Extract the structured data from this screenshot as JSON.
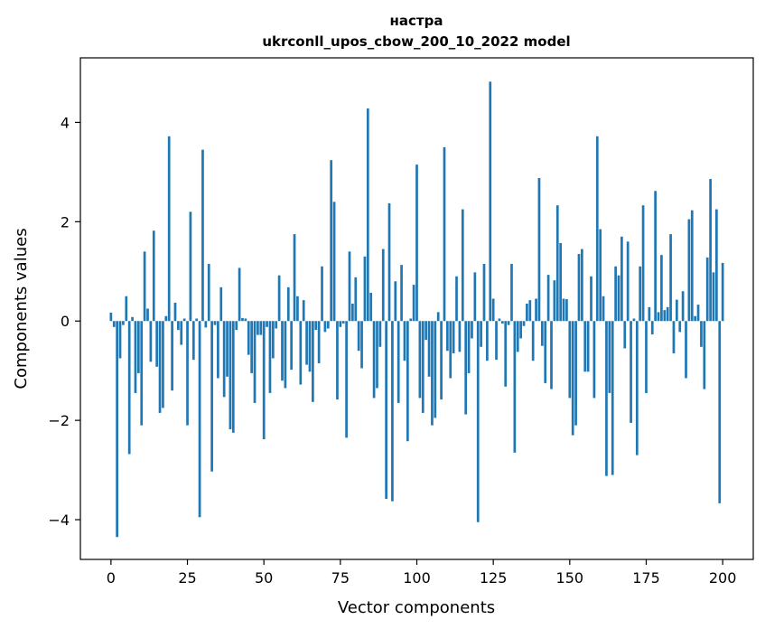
{
  "chart_data": {
    "type": "bar",
    "title": "настра",
    "subtitle": "ukrconll_upos_cbow_200_10_2022 model",
    "xlabel": "Vector components",
    "ylabel": "Components values",
    "xlim": [
      -10,
      210
    ],
    "ylim": [
      -4.8,
      5.3
    ],
    "xticks": [
      0,
      25,
      50,
      75,
      100,
      125,
      150,
      175,
      200
    ],
    "yticks": [
      -4,
      -2,
      0,
      2,
      4
    ],
    "xtick_labels": [
      "0",
      "25",
      "50",
      "75",
      "100",
      "125",
      "150",
      "175",
      "200"
    ],
    "ytick_labels": [
      "−4",
      "−2",
      "0",
      "2",
      "4"
    ],
    "bar_color": "#1f77b4",
    "grid": false,
    "values": [
      0.17,
      -0.12,
      -4.35,
      -0.75,
      -0.08,
      0.5,
      -2.68,
      0.08,
      -1.45,
      -1.05,
      -2.1,
      1.4,
      0.25,
      -0.82,
      1.82,
      -0.92,
      -1.85,
      -1.75,
      0.1,
      3.72,
      -1.4,
      0.37,
      -0.18,
      -0.48,
      0.05,
      -2.1,
      2.2,
      -0.78,
      0.05,
      -3.95,
      3.45,
      -0.13,
      1.15,
      -3.03,
      -0.08,
      -1.15,
      0.68,
      -1.53,
      -1.12,
      -2.18,
      -2.25,
      -0.18,
      1.07,
      0.06,
      0.05,
      -0.68,
      -1.05,
      -1.65,
      -0.28,
      -0.28,
      -2.38,
      -0.12,
      -1.45,
      -0.75,
      -0.15,
      0.92,
      -1.2,
      -1.35,
      0.68,
      -0.98,
      1.75,
      0.5,
      -1.28,
      0.42,
      -0.88,
      -1.02,
      -1.63,
      -0.18,
      -0.85,
      1.1,
      -0.22,
      -0.15,
      3.24,
      2.4,
      -1.58,
      -0.12,
      -0.05,
      -2.35,
      1.4,
      0.35,
      0.88,
      -0.6,
      -0.95,
      1.3,
      4.28,
      0.57,
      -1.55,
      -1.35,
      -0.52,
      1.45,
      -3.58,
      2.37,
      -3.63,
      0.8,
      -1.65,
      1.13,
      -0.8,
      -2.42,
      0.05,
      0.73,
      3.15,
      -1.55,
      -1.85,
      -0.38,
      -1.12,
      -2.1,
      -1.95,
      0.18,
      -1.58,
      3.5,
      -0.6,
      -1.15,
      -0.65,
      0.9,
      -0.62,
      2.25,
      -1.88,
      -1.05,
      -0.35,
      0.98,
      -4.05,
      -0.52,
      1.15,
      -0.8,
      4.82,
      0.45,
      -0.78,
      0.05,
      -0.05,
      -1.32,
      -0.08,
      1.15,
      -2.65,
      -0.62,
      -0.35,
      -0.1,
      0.35,
      0.42,
      -0.8,
      0.45,
      2.88,
      -0.5,
      -1.25,
      0.93,
      -1.37,
      0.82,
      2.33,
      1.57,
      0.45,
      0.44,
      -1.55,
      -2.3,
      -2.1,
      1.35,
      1.45,
      -1.02,
      -1.02,
      0.9,
      -1.55,
      3.72,
      1.85,
      0.5,
      -3.12,
      -1.45,
      -3.1,
      1.1,
      0.92,
      1.7,
      -0.55,
      1.6,
      -2.05,
      0.05,
      -2.7,
      1.1,
      2.33,
      -1.45,
      0.28,
      -0.27,
      2.62,
      0.18,
      1.33,
      0.22,
      0.28,
      1.75,
      -0.65,
      0.43,
      -0.22,
      0.6,
      -1.15,
      2.05,
      2.23,
      0.1,
      0.33,
      -0.52,
      -1.37,
      1.28,
      2.86,
      0.98,
      2.25,
      -3.67,
      1.17
    ]
  }
}
